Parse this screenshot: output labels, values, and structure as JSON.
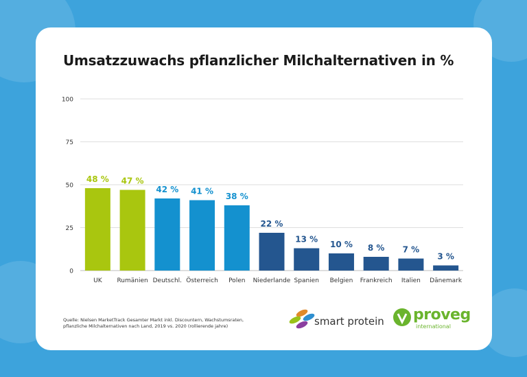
{
  "chart_data": {
    "type": "bar",
    "title": "Umsatzzuwachs pflanzlicher Milchalternativen in %",
    "xlabel": "",
    "ylabel": "",
    "ylim": [
      0,
      100
    ],
    "yticks": [
      0,
      25,
      50,
      75,
      100
    ],
    "grid": true,
    "categories": [
      "UK",
      "Rumänien",
      "Deutschl.",
      "Österreich",
      "Polen",
      "Niederlande",
      "Spanien",
      "Belgien",
      "Frankreich",
      "Italien",
      "Dänemark"
    ],
    "values": [
      48,
      47,
      42,
      41,
      38,
      22,
      13,
      10,
      8,
      7,
      3
    ],
    "data_labels": [
      "48 %",
      "47 %",
      "42 %",
      "41 %",
      "38 %",
      "22 %",
      "13 %",
      "10 %",
      "8 %",
      "7 %",
      "3 %"
    ],
    "color_groups": [
      "lime",
      "lime",
      "blue",
      "blue",
      "blue",
      "navy",
      "navy",
      "navy",
      "navy",
      "navy",
      "navy"
    ]
  },
  "colors": {
    "lime": "#a9c60f",
    "blue": "#1491cf",
    "navy": "#24568f",
    "background": "#3da3dc"
  },
  "source": "Quelle: Nielsen MarketTrack Gesamter Markt inkl. Discountern, Wachstumsraten, pflanzliche Milchalternativen nach Land, 2019 vs. 2020 (rollierende jahre)",
  "logos": {
    "smart_protein": "smart protein",
    "proveg": "proveg",
    "proveg_sub": "international"
  }
}
